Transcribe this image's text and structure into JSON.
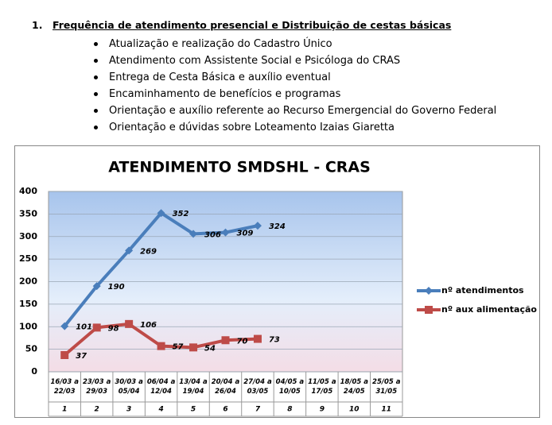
{
  "heading": {
    "number": "1.",
    "text": "Frequência de atendimento presencial e Distribuição de cestas básicas"
  },
  "bullets": [
    "Atualização e realização do Cadastro Único",
    "Atendimento com Assistente Social e Psicóloga do CRAS",
    "Entrega de Cesta Básica e auxílio eventual",
    "Encaminhamento de benefícios e programas",
    "Orientação e auxílio referente ao Recurso Emergencial do Governo Federal",
    "Orientação e dúvidas sobre Loteamento Izaias Giaretta"
  ],
  "chart_data": {
    "type": "line",
    "title": "ATENDIMENTO SMDSHL - CRAS",
    "categories": [
      "16/03 a 22/03",
      "23/03 a 29/03",
      "30/03 a 05/04",
      "06/04 a 12/04",
      "13/04 a 19/04",
      "20/04 a 26/04",
      "27/04 a 03/05",
      "04/05 a 10/05",
      "11/05 a 17/05",
      "18/05 a 24/05",
      "25/05 a 31/05"
    ],
    "week_numbers": [
      1,
      2,
      3,
      4,
      5,
      6,
      7,
      8,
      9,
      10,
      11
    ],
    "series": [
      {
        "name": "nº atendimentos",
        "color": "#4a7ebb",
        "marker": "diamond",
        "values": [
          101,
          190,
          269,
          352,
          306,
          309,
          324,
          null,
          null,
          null,
          null
        ]
      },
      {
        "name": "nº aux alimentação",
        "color": "#be4b48",
        "marker": "square",
        "values": [
          37,
          98,
          106,
          57,
          54,
          70,
          73,
          null,
          null,
          null,
          null
        ]
      }
    ],
    "ylim": [
      0,
      400
    ],
    "yticks": [
      0,
      50,
      100,
      150,
      200,
      250,
      300,
      350,
      400
    ],
    "grid": true,
    "legend": "right"
  }
}
